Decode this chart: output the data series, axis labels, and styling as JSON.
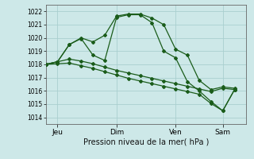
{
  "background_color": "#cde8e8",
  "grid_color": "#aacfcf",
  "line_color": "#1a5c1a",
  "title": "Pression niveau de la mer( hPa )",
  "ylim": [
    1013.5,
    1022.5
  ],
  "yticks": [
    1014,
    1015,
    1016,
    1017,
    1018,
    1019,
    1020,
    1021,
    1022
  ],
  "day_labels": [
    "Jeu",
    "Dim",
    "Ven",
    "Sam"
  ],
  "day_positions": [
    0.5,
    3.0,
    5.5,
    7.5
  ],
  "xlim": [
    0.0,
    8.5
  ],
  "series1_x": [
    0.0,
    0.5,
    1.0,
    1.5,
    2.0,
    2.5,
    3.0,
    3.5,
    4.0,
    4.5,
    5.0,
    5.5,
    6.0,
    6.5,
    7.0,
    7.5,
    8.0
  ],
  "series1_y": [
    1018.0,
    1018.2,
    1019.5,
    1020.0,
    1019.7,
    1020.2,
    1021.65,
    1021.8,
    1021.8,
    1021.5,
    1021.0,
    1019.15,
    1018.7,
    1016.8,
    1016.1,
    1016.3,
    1016.2
  ],
  "series2_x": [
    0.0,
    0.5,
    1.0,
    1.5,
    2.0,
    2.5,
    3.0,
    3.5,
    4.0,
    4.5,
    5.0,
    5.5,
    6.0,
    6.5,
    7.0,
    7.5,
    8.0
  ],
  "series2_y": [
    1018.0,
    1018.2,
    1018.4,
    1018.25,
    1018.05,
    1017.8,
    1017.55,
    1017.35,
    1017.15,
    1016.95,
    1016.75,
    1016.55,
    1016.35,
    1016.15,
    1015.95,
    1016.2,
    1016.1
  ],
  "series3_x": [
    0.0,
    0.5,
    1.0,
    1.5,
    2.0,
    2.5,
    3.0,
    3.5,
    4.0,
    4.5,
    5.0,
    5.5,
    6.0,
    6.5,
    7.0,
    7.5,
    8.0
  ],
  "series3_y": [
    1018.0,
    1018.05,
    1018.1,
    1017.9,
    1017.7,
    1017.45,
    1017.2,
    1016.95,
    1016.75,
    1016.55,
    1016.35,
    1016.15,
    1015.95,
    1015.75,
    1015.05,
    1014.5,
    1016.1
  ],
  "series4_x": [
    0.0,
    0.5,
    1.0,
    1.5,
    2.0,
    2.5,
    3.0,
    3.5,
    4.0,
    4.5,
    5.0,
    5.5,
    6.0,
    6.5,
    7.0,
    7.5,
    8.0
  ],
  "series4_y": [
    1018.0,
    1018.2,
    1019.5,
    1019.95,
    1018.7,
    1018.3,
    1021.55,
    1021.75,
    1021.75,
    1021.15,
    1019.0,
    1018.5,
    1016.7,
    1016.0,
    1015.2,
    1014.5,
    1016.1
  ],
  "vline_positions": [
    0.5,
    3.0,
    5.5,
    7.5
  ],
  "marker": "D",
  "markersize": 2.0,
  "linewidth": 0.9
}
